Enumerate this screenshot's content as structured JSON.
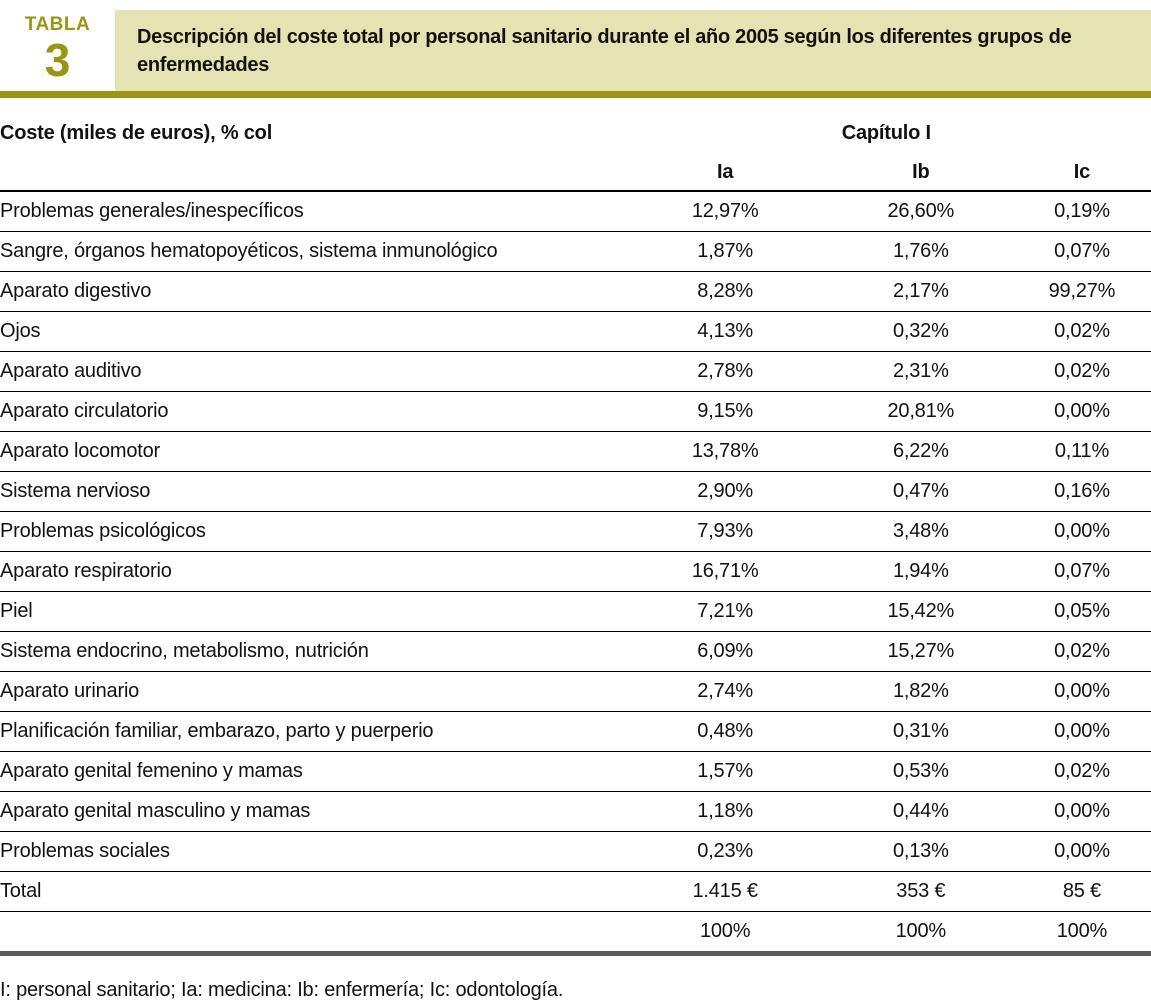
{
  "header": {
    "tag_word": "TABLA",
    "tag_number": "3",
    "title": "Descripción del coste total por personal sanitario durante el año 2005 según los diferentes grupos de enfermedades"
  },
  "table": {
    "corner_label": "Coste (miles de euros), % col",
    "group_header": "Capítulo I",
    "columns": [
      "Ia",
      "Ib",
      "Ic"
    ],
    "rows": [
      {
        "label": "Problemas generales/inespecíficos",
        "values": [
          "12,97%",
          "26,60%",
          "0,19%"
        ]
      },
      {
        "label": "Sangre, órganos hematopoyéticos, sistema inmunológico",
        "values": [
          "1,87%",
          "1,76%",
          "0,07%"
        ]
      },
      {
        "label": "Aparato digestivo",
        "values": [
          "8,28%",
          "2,17%",
          "99,27%"
        ]
      },
      {
        "label": "Ojos",
        "values": [
          "4,13%",
          "0,32%",
          "0,02%"
        ]
      },
      {
        "label": "Aparato auditivo",
        "values": [
          "2,78%",
          "2,31%",
          "0,02%"
        ]
      },
      {
        "label": "Aparato circulatorio",
        "values": [
          "9,15%",
          "20,81%",
          "0,00%"
        ]
      },
      {
        "label": "Aparato locomotor",
        "values": [
          "13,78%",
          "6,22%",
          "0,11%"
        ]
      },
      {
        "label": "Sistema nervioso",
        "values": [
          "2,90%",
          "0,47%",
          "0,16%"
        ]
      },
      {
        "label": "Problemas psicológicos",
        "values": [
          "7,93%",
          "3,48%",
          "0,00%"
        ]
      },
      {
        "label": "Aparato respiratorio",
        "values": [
          "16,71%",
          "1,94%",
          "0,07%"
        ]
      },
      {
        "label": "Piel",
        "values": [
          "7,21%",
          "15,42%",
          "0,05%"
        ]
      },
      {
        "label": "Sistema endocrino, metabolismo, nutrición",
        "values": [
          "6,09%",
          "15,27%",
          "0,02%"
        ]
      },
      {
        "label": "Aparato urinario",
        "values": [
          "2,74%",
          "1,82%",
          "0,00%"
        ]
      },
      {
        "label": "Planificación familiar, embarazo, parto y puerperio",
        "values": [
          "0,48%",
          "0,31%",
          "0,00%"
        ]
      },
      {
        "label": "Aparato genital femenino y mamas",
        "values": [
          "1,57%",
          "0,53%",
          "0,02%"
        ]
      },
      {
        "label": "Aparato genital masculino y mamas",
        "values": [
          "1,18%",
          "0,44%",
          "0,00%"
        ]
      },
      {
        "label": "Problemas sociales",
        "values": [
          "0,23%",
          "0,13%",
          "0,00%"
        ]
      }
    ],
    "total_row": {
      "label": "Total",
      "values": [
        "1.415 €",
        "353 €",
        "85 €"
      ]
    },
    "percent_row": {
      "label": "",
      "values": [
        "100%",
        "100%",
        "100%"
      ]
    }
  },
  "footnote": "I: personal sanitario; Ia: medicina: Ib: enfermería; Ic: odontología.",
  "colors": {
    "accent_olive": "#9a9514",
    "title_bg": "#e5e3b4",
    "bottom_bar": "#5a5a5a"
  }
}
